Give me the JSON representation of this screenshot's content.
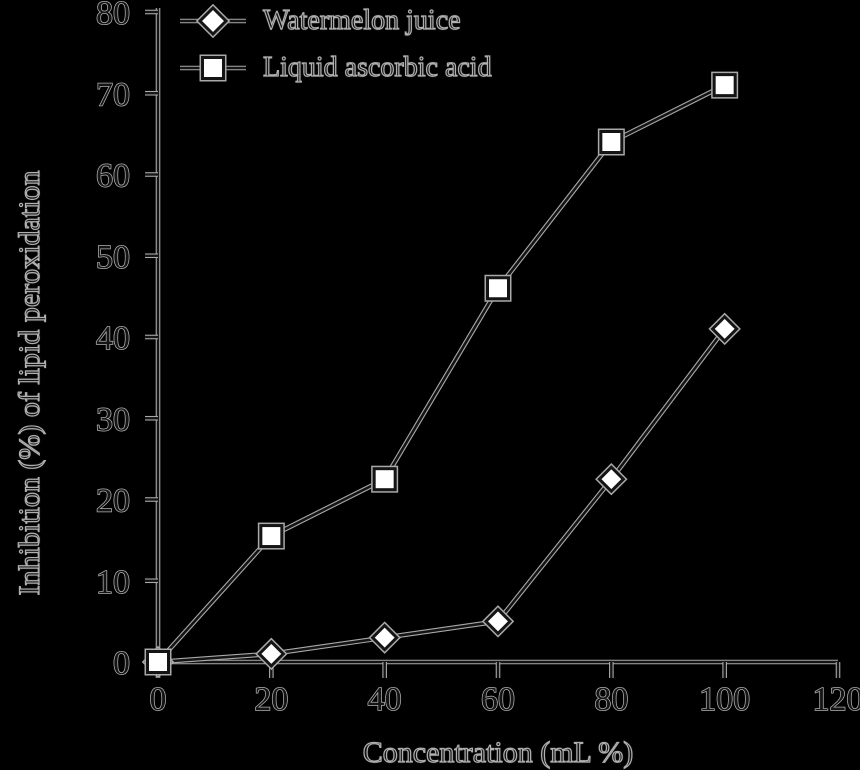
{
  "figure": {
    "background": "#000000"
  },
  "legend": {
    "items": [
      {
        "label": "Watermelon juice",
        "marker": "diamond"
      },
      {
        "label": "Liquid ascorbic acid",
        "marker": "square"
      }
    ]
  },
  "chart_data": {
    "type": "line",
    "title": "",
    "xlabel": "Concentration (mL %)",
    "ylabel": "Inhibition (%) of lipid peroxidation",
    "x": [
      0,
      20,
      40,
      60,
      80,
      100
    ],
    "series": [
      {
        "name": "Watermelon juice",
        "marker": "diamond",
        "values": [
          0,
          1,
          3,
          5,
          22.5,
          41
        ]
      },
      {
        "name": "Liquid ascorbic acid",
        "marker": "square",
        "values": [
          0,
          15.5,
          22.5,
          46,
          64,
          71
        ]
      }
    ],
    "xlim": [
      0,
      120
    ],
    "ylim": [
      0,
      80
    ],
    "x_ticks": [
      0,
      20,
      40,
      60,
      80,
      100,
      120
    ],
    "y_ticks": [
      0,
      10,
      20,
      30,
      40,
      50,
      60,
      70,
      80
    ],
    "grid": false,
    "legend_position": "top-left",
    "colors": {
      "background": "#000000",
      "stroke": "#141414",
      "halo": "#a9a9a9",
      "marker_fill": "#ffffff",
      "text_fill": "#141414",
      "text_outline": "#b0b0b0"
    }
  }
}
